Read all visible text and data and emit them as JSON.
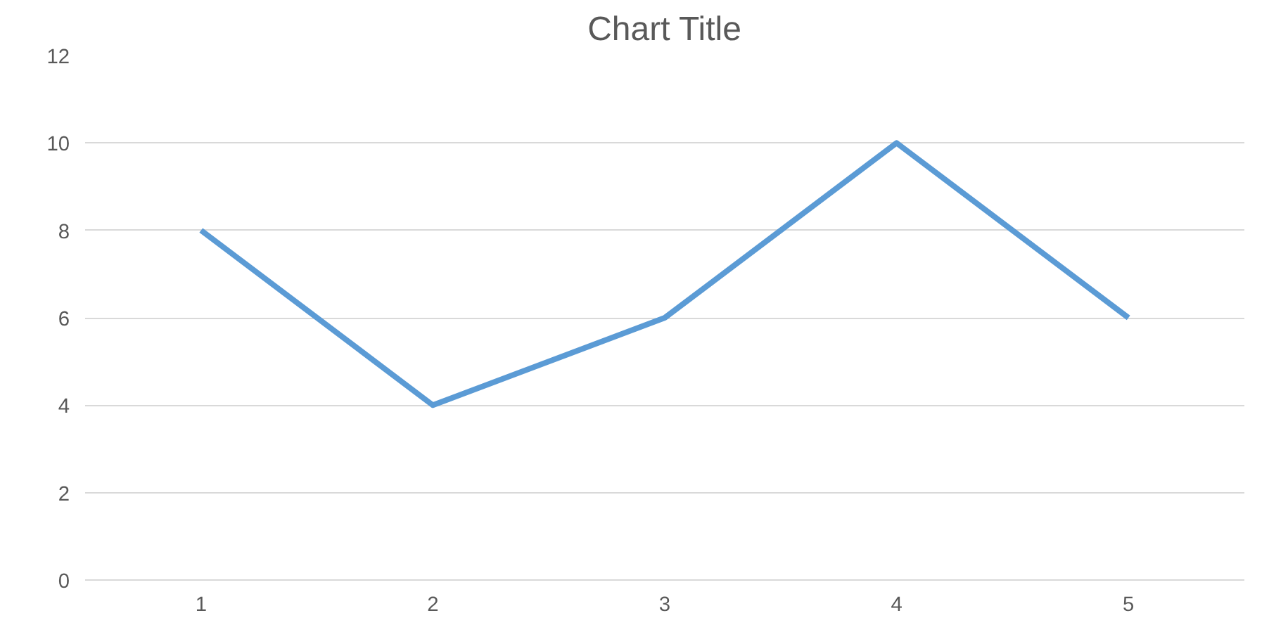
{
  "chart_data": {
    "type": "line",
    "title": "Chart Title",
    "categories": [
      "1",
      "2",
      "3",
      "4",
      "5"
    ],
    "series": [
      {
        "color": "#5b9bd5",
        "values": [
          8,
          4,
          6,
          10,
          6
        ]
      }
    ],
    "ylim": [
      0,
      12
    ],
    "yticks": [
      0,
      2,
      4,
      6,
      8,
      10,
      12
    ],
    "grid": "y",
    "line_style": "solid"
  }
}
